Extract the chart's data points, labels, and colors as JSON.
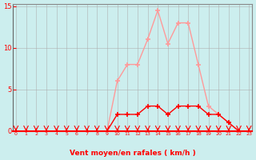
{
  "xlabel": "Vent moyen/en rafales ( km/h )",
  "ylabel": "",
  "x": [
    0,
    1,
    2,
    3,
    4,
    5,
    6,
    7,
    8,
    9,
    10,
    11,
    12,
    13,
    14,
    15,
    16,
    17,
    18,
    19,
    20,
    21,
    22,
    23
  ],
  "y_moyen": [
    0,
    0,
    0,
    0,
    0,
    0,
    0,
    0,
    0,
    0,
    2,
    2,
    2,
    3,
    3,
    2,
    3,
    3,
    3,
    2,
    2,
    1,
    0,
    0
  ],
  "y_rafales": [
    0,
    0,
    0,
    0,
    0,
    0,
    0,
    0,
    0,
    0,
    6,
    8,
    8,
    11,
    14.5,
    10.5,
    13,
    13,
    8,
    3,
    2,
    1,
    0,
    0
  ],
  "line_color_moyen": "#ff0000",
  "line_color_rafales": "#ff9999",
  "marker_color_moyen": "#ff0000",
  "marker_color_rafales": "#ff9999",
  "bg_color": "#cceeee",
  "grid_color": "#aaaaaa",
  "tick_color": "#ff0000",
  "label_color": "#ff0000",
  "ylim": [
    0,
    15
  ],
  "xlim": [
    0,
    23
  ],
  "yticks": [
    0,
    5,
    10,
    15
  ],
  "xticks": [
    0,
    1,
    2,
    3,
    4,
    5,
    6,
    7,
    8,
    9,
    10,
    11,
    12,
    13,
    14,
    15,
    16,
    17,
    18,
    19,
    20,
    21,
    22,
    23
  ]
}
